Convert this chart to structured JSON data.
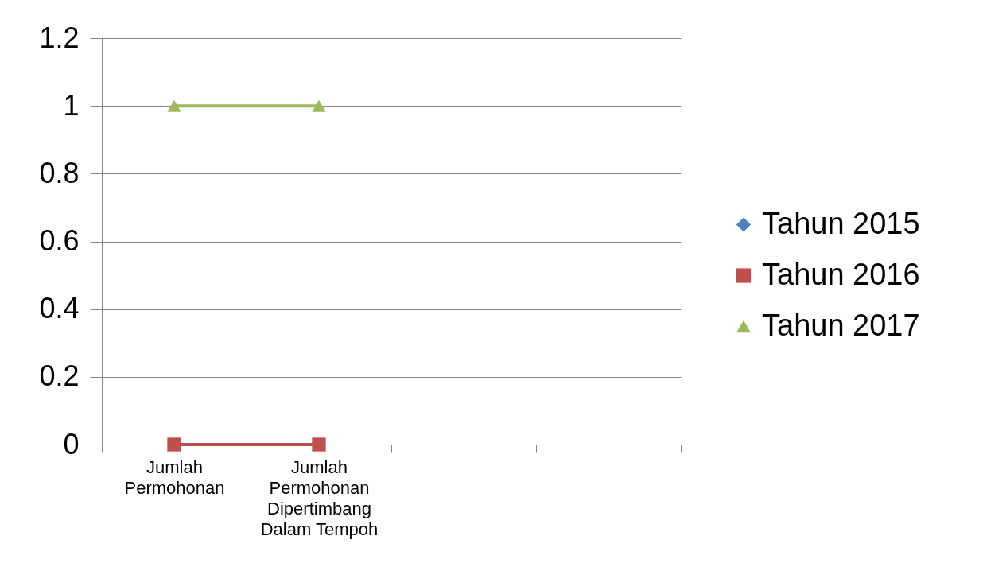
{
  "chart_data": {
    "type": "line",
    "categories": [
      "Jumlah Permohonan",
      "Jumlah Permohonan Dipertimbang Dalam Tempoh",
      null,
      null
    ],
    "series": [
      {
        "name": "Tahun 2015",
        "color": "#4f81bd",
        "marker": "diamond",
        "values": [
          null,
          null,
          null,
          null
        ]
      },
      {
        "name": "Tahun 2016",
        "color": "#c0504d",
        "marker": "square",
        "values": [
          0,
          0,
          null,
          null
        ]
      },
      {
        "name": "Tahun 2017",
        "color": "#9bbb59",
        "marker": "triangle",
        "values": [
          1,
          1,
          null,
          null
        ]
      }
    ],
    "ylim": [
      0,
      1.2
    ],
    "yticks": [
      0,
      0.2,
      0.4,
      0.6,
      0.8,
      1,
      1.2
    ],
    "grid": "y",
    "legend": "right",
    "line_style": "solid"
  }
}
